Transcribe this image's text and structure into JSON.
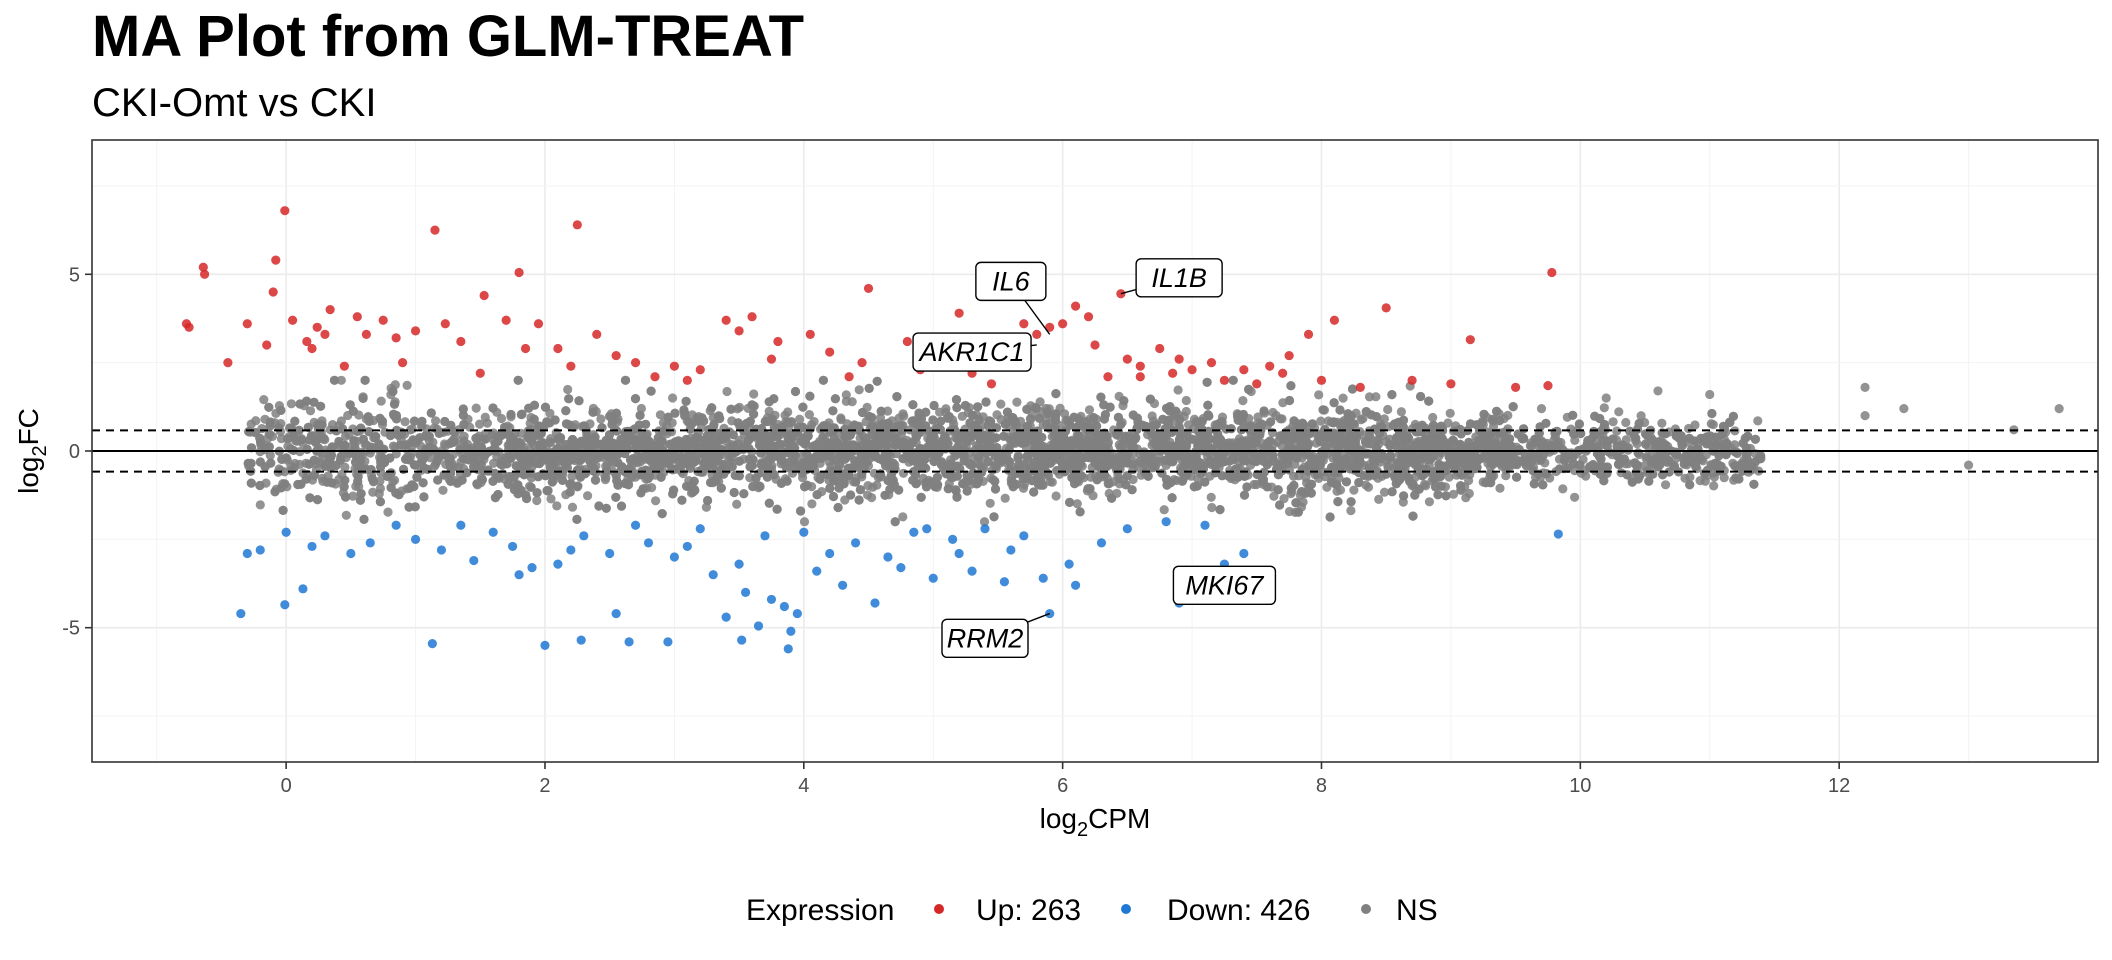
{
  "chart_data": {
    "type": "scatter",
    "title": "MA Plot from GLM-TREAT",
    "subtitle": "CKI-Omt vs CKI",
    "xlabel": {
      "base": "log",
      "sub": "2",
      "rest": "CPM"
    },
    "ylabel": {
      "base": "log",
      "sub": "2",
      "rest": "FC"
    },
    "xlim": [
      -1.5,
      14.0
    ],
    "ylim": [
      -8.8,
      8.8
    ],
    "x_ticks": [
      0,
      2,
      4,
      6,
      8,
      10,
      12
    ],
    "y_ticks": [
      -5,
      0,
      5
    ],
    "x_tick_labels": [
      "0",
      "2",
      "4",
      "6",
      "8",
      "10",
      "12"
    ],
    "y_tick_labels": [
      "-5",
      "0",
      "5"
    ],
    "hlines": [
      {
        "y": 0,
        "style": "solid"
      },
      {
        "y": 0.585,
        "style": "dashed"
      },
      {
        "y": -0.585,
        "style": "dashed"
      }
    ],
    "grid": true,
    "legend": {
      "position": "bottom",
      "title": "Expression",
      "items": [
        {
          "label": "Up: 263",
          "color": "#d62728"
        },
        {
          "label": "Down: 426",
          "color": "#1f78d4"
        },
        {
          "label": "NS",
          "color": "#808080"
        }
      ]
    },
    "colors": {
      "up": "#d62728",
      "down": "#1f78d4",
      "ns": "#808080"
    },
    "ns_band": {
      "x_range": [
        -0.3,
        11.4
      ],
      "y_range": [
        -2.0,
        2.0
      ]
    },
    "series": [
      {
        "name": "Up: 263",
        "color": "#d62728",
        "points": [
          [
            -0.77,
            3.6
          ],
          [
            -0.75,
            3.5
          ],
          [
            -0.64,
            5.2
          ],
          [
            -0.63,
            5.0
          ],
          [
            -0.01,
            6.8
          ],
          [
            -0.08,
            5.4
          ],
          [
            -0.1,
            4.5
          ],
          [
            1.15,
            6.25
          ],
          [
            2.25,
            6.4
          ],
          [
            1.8,
            5.05
          ],
          [
            1.53,
            4.4
          ],
          [
            0.34,
            4.0
          ],
          [
            0.05,
            3.7
          ],
          [
            0.24,
            3.5
          ],
          [
            0.3,
            3.3
          ],
          [
            0.16,
            3.1
          ],
          [
            -0.45,
            2.5
          ],
          [
            -0.3,
            3.6
          ],
          [
            -0.15,
            3.0
          ],
          [
            0.55,
            3.8
          ],
          [
            0.62,
            3.3
          ],
          [
            0.75,
            3.7
          ],
          [
            0.85,
            3.2
          ],
          [
            1.0,
            3.4
          ],
          [
            1.23,
            3.6
          ],
          [
            1.35,
            3.1
          ],
          [
            1.7,
            3.7
          ],
          [
            1.95,
            3.6
          ],
          [
            2.1,
            2.9
          ],
          [
            2.4,
            3.3
          ],
          [
            2.7,
            2.5
          ],
          [
            3.4,
            3.7
          ],
          [
            3.5,
            3.4
          ],
          [
            3.6,
            3.8
          ],
          [
            3.8,
            3.1
          ],
          [
            4.05,
            3.3
          ],
          [
            4.2,
            2.8
          ],
          [
            4.5,
            4.6
          ],
          [
            4.45,
            2.5
          ],
          [
            4.8,
            3.1
          ],
          [
            5.05,
            3.0
          ],
          [
            5.2,
            3.9
          ],
          [
            5.4,
            3.0
          ],
          [
            5.5,
            2.7
          ],
          [
            5.7,
            3.6
          ],
          [
            5.8,
            3.3
          ],
          [
            5.9,
            3.5
          ],
          [
            6.0,
            3.6
          ],
          [
            6.1,
            4.1
          ],
          [
            6.2,
            3.8
          ],
          [
            6.25,
            3.0
          ],
          [
            6.45,
            4.45
          ],
          [
            6.5,
            2.6
          ],
          [
            6.6,
            2.4
          ],
          [
            6.75,
            2.9
          ],
          [
            6.85,
            2.2
          ],
          [
            7.0,
            2.3
          ],
          [
            7.15,
            2.5
          ],
          [
            7.4,
            2.3
          ],
          [
            7.6,
            2.4
          ],
          [
            7.7,
            2.2
          ],
          [
            7.75,
            2.7
          ],
          [
            7.9,
            3.3
          ],
          [
            8.1,
            3.7
          ],
          [
            8.5,
            4.05
          ],
          [
            9.15,
            3.15
          ],
          [
            9.78,
            5.05
          ],
          [
            5.45,
            1.9
          ],
          [
            6.6,
            2.1
          ],
          [
            7.5,
            1.9
          ],
          [
            8.3,
            1.8
          ],
          [
            8.7,
            2.0
          ],
          [
            9.0,
            1.9
          ],
          [
            9.5,
            1.8
          ],
          [
            9.75,
            1.85
          ],
          [
            3.2,
            2.3
          ],
          [
            2.85,
            2.1
          ],
          [
            3.1,
            2.0
          ],
          [
            2.2,
            2.4
          ],
          [
            1.5,
            2.2
          ],
          [
            0.9,
            2.5
          ],
          [
            0.45,
            2.4
          ],
          [
            4.9,
            2.3
          ],
          [
            5.3,
            2.2
          ],
          [
            5.6,
            2.4
          ],
          [
            6.35,
            2.1
          ],
          [
            7.25,
            2.0
          ],
          [
            8.0,
            2.0
          ],
          [
            1.85,
            2.9
          ],
          [
            2.55,
            2.7
          ],
          [
            3.75,
            2.6
          ],
          [
            4.35,
            2.1
          ],
          [
            0.2,
            2.9
          ],
          [
            3.0,
            2.4
          ],
          [
            6.9,
            2.6
          ]
        ]
      },
      {
        "name": "Down: 426",
        "color": "#1f78d4",
        "points": [
          [
            -0.35,
            -4.6
          ],
          [
            -0.01,
            -4.35
          ],
          [
            0.13,
            -3.9
          ],
          [
            -0.3,
            -2.9
          ],
          [
            -0.2,
            -2.8
          ],
          [
            0.0,
            -2.3
          ],
          [
            0.3,
            -2.4
          ],
          [
            0.5,
            -2.9
          ],
          [
            0.65,
            -2.6
          ],
          [
            1.0,
            -2.5
          ],
          [
            1.2,
            -2.8
          ],
          [
            1.45,
            -3.1
          ],
          [
            1.8,
            -3.5
          ],
          [
            1.9,
            -3.3
          ],
          [
            2.1,
            -3.2
          ],
          [
            2.5,
            -2.9
          ],
          [
            2.8,
            -2.6
          ],
          [
            3.0,
            -3.0
          ],
          [
            3.3,
            -3.5
          ],
          [
            3.5,
            -3.2
          ],
          [
            3.55,
            -4.0
          ],
          [
            3.75,
            -4.2
          ],
          [
            3.85,
            -4.4
          ],
          [
            3.95,
            -4.6
          ],
          [
            4.1,
            -3.4
          ],
          [
            4.3,
            -3.8
          ],
          [
            4.55,
            -4.3
          ],
          [
            4.75,
            -3.3
          ],
          [
            5.0,
            -3.6
          ],
          [
            5.3,
            -3.4
          ],
          [
            5.55,
            -3.7
          ],
          [
            5.85,
            -3.6
          ],
          [
            6.05,
            -3.2
          ],
          [
            6.1,
            -3.8
          ],
          [
            5.9,
            -4.6
          ],
          [
            6.9,
            -4.3
          ],
          [
            7.25,
            -3.2
          ],
          [
            7.4,
            -2.9
          ],
          [
            1.13,
            -5.45
          ],
          [
            2.0,
            -5.5
          ],
          [
            2.28,
            -5.35
          ],
          [
            2.65,
            -5.4
          ],
          [
            2.95,
            -5.4
          ],
          [
            3.52,
            -5.35
          ],
          [
            3.88,
            -5.6
          ],
          [
            3.9,
            -5.1
          ],
          [
            3.65,
            -4.95
          ],
          [
            3.4,
            -4.7
          ],
          [
            2.55,
            -4.6
          ],
          [
            9.83,
            -2.35
          ],
          [
            7.1,
            -2.1
          ],
          [
            6.8,
            -2.0
          ],
          [
            6.5,
            -2.2
          ],
          [
            5.7,
            -2.4
          ],
          [
            5.4,
            -2.2
          ],
          [
            5.15,
            -2.5
          ],
          [
            4.85,
            -2.3
          ],
          [
            4.4,
            -2.6
          ],
          [
            4.0,
            -2.3
          ],
          [
            3.7,
            -2.4
          ],
          [
            3.2,
            -2.2
          ],
          [
            2.7,
            -2.1
          ],
          [
            2.3,
            -2.4
          ],
          [
            1.6,
            -2.3
          ],
          [
            1.35,
            -2.1
          ],
          [
            0.85,
            -2.1
          ],
          [
            0.2,
            -2.7
          ],
          [
            4.2,
            -2.9
          ],
          [
            4.65,
            -3.0
          ],
          [
            3.1,
            -2.7
          ],
          [
            2.2,
            -2.8
          ],
          [
            1.75,
            -2.7
          ],
          [
            5.6,
            -2.8
          ],
          [
            6.3,
            -2.6
          ],
          [
            5.2,
            -2.9
          ],
          [
            4.95,
            -2.2
          ]
        ]
      }
    ],
    "annotations": [
      {
        "label": "IL6",
        "x": 5.9,
        "y": 3.3,
        "box_x": 5.6,
        "box_y": 4.8
      },
      {
        "label": "IL1B",
        "x": 6.45,
        "y": 4.45,
        "box_x": 6.9,
        "box_y": 4.9
      },
      {
        "label": "AKR1C1",
        "x": 5.8,
        "y": 3.0,
        "box_x": 5.3,
        "box_y": 2.8
      },
      {
        "label": "MKI67",
        "x": 6.9,
        "y": -4.3,
        "box_x": 7.25,
        "box_y": -3.8
      },
      {
        "label": "RRM2",
        "x": 5.9,
        "y": -4.6,
        "box_x": 5.4,
        "box_y": -5.3
      }
    ]
  }
}
